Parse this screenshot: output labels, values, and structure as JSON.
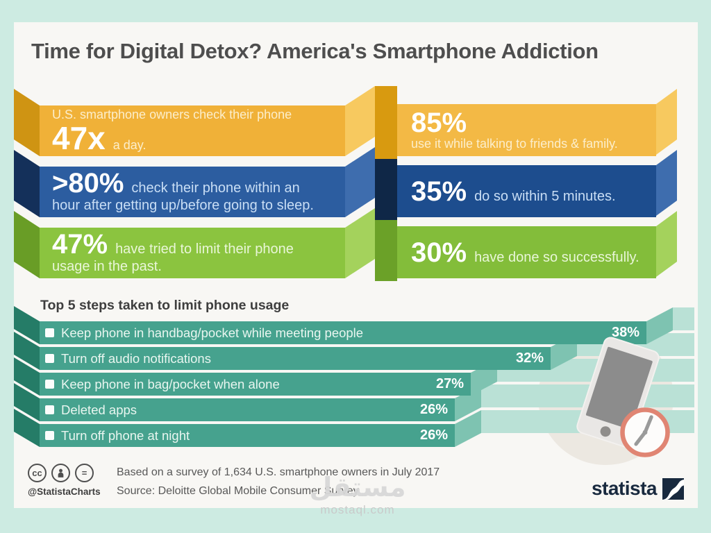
{
  "title": "Time for Digital Detox? America's Smartphone Addiction",
  "ribbon_stats": [
    {
      "left_intro": "U.S. smartphone owners check their phone",
      "left_big": "47x",
      "left_rest": "a day.",
      "right_big": "85%",
      "right_rest": "use it while talking to friends & family."
    },
    {
      "left_big": ">80%",
      "left_rest": "check their phone within an hour after getting up/before going to sleep.",
      "right_big": "35%",
      "right_rest": "do so within 5 minutes."
    },
    {
      "left_big": "47%",
      "left_rest": "have tried to limit their phone usage in the past.",
      "right_big": "30%",
      "right_rest": "have done so successfully."
    }
  ],
  "chart_data": {
    "type": "bar",
    "orientation": "horizontal",
    "title": "Top 5 steps taken to limit phone usage",
    "categories": [
      "Keep phone in handbag/pocket while meeting people",
      "Turn off audio notifications",
      "Keep phone in bag/pocket when alone",
      "Deleted apps",
      "Turn off phone at night"
    ],
    "values": [
      38,
      32,
      27,
      26,
      26
    ],
    "value_labels": [
      "38%",
      "32%",
      "27%",
      "26%",
      "26%"
    ],
    "xlim": [
      0,
      41
    ],
    "grid": false,
    "legend": false,
    "bar_color": "#46a28e"
  },
  "footer": {
    "handle": "@StatistaCharts",
    "note": "Based on a survey of 1,634 U.S. smartphone owners in July 2017",
    "source": "Source: Deloitte Global Mobile Consumer Survey",
    "brand": "statista",
    "license_cc": "cc",
    "license_nd": "="
  },
  "watermark": {
    "arabic": "مستقل",
    "latin": "mostaql.com"
  },
  "colors": {
    "background": "#cdebe2",
    "card": "#f8f7f4",
    "yellow": "#f0b138",
    "blue": "#2c5da0",
    "green": "#8bc43f",
    "teal_bar": "#46a28e",
    "teal_fold": "#257c67",
    "teal_shadow": "#bae1d6",
    "clock_ring": "#e08573",
    "statista_navy": "#18293e"
  }
}
